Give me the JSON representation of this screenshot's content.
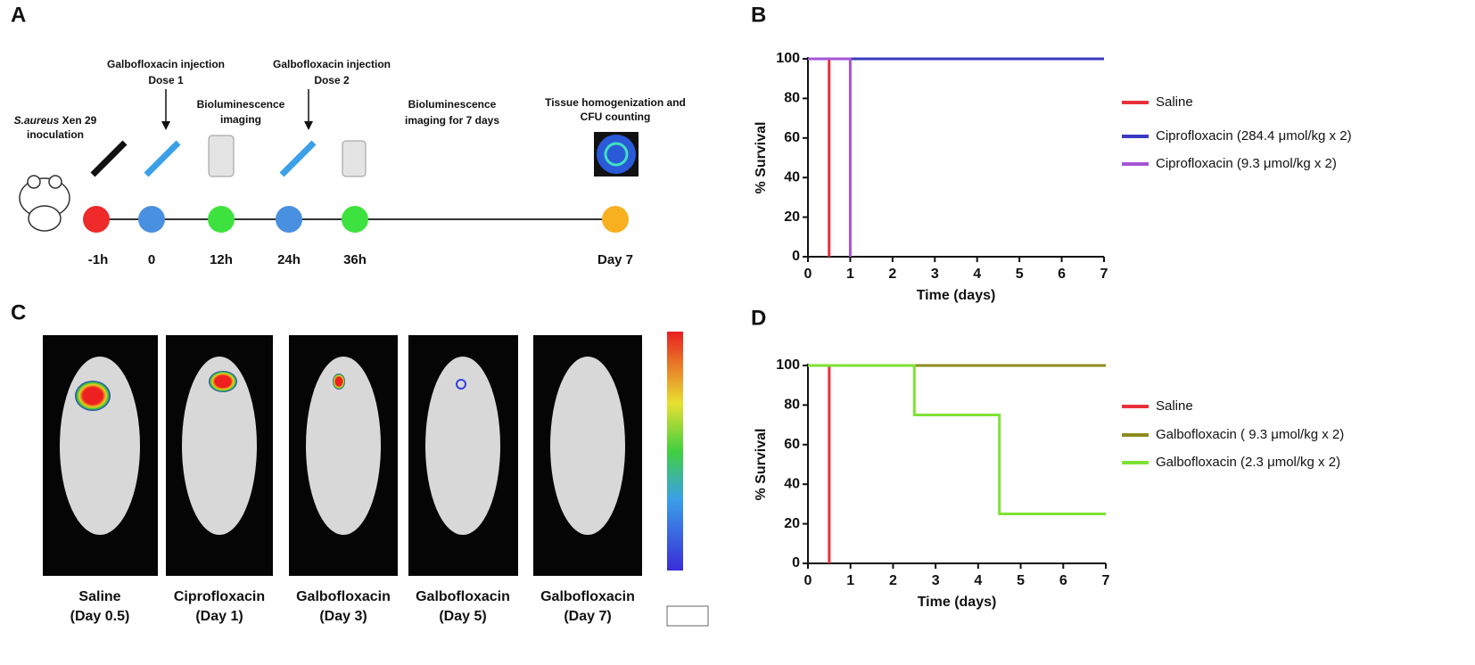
{
  "panels": {
    "a": "A",
    "b": "B",
    "c": "C",
    "d": "D"
  },
  "timeline": {
    "inoculation": {
      "organism": "S.aureus",
      "strain": " Xen 29",
      "line2": "inoculation"
    },
    "dose1": {
      "line1": "Galbofloxacin injection",
      "line2": "Dose 1"
    },
    "imaging1": {
      "line1": "Bioluminescence",
      "line2": "imaging"
    },
    "dose2": {
      "line1": "Galbofloxacin injection",
      "line2": "Dose 2"
    },
    "imaging2": {
      "line1": "Bioluminescence",
      "line2": "imaging for 7 days"
    },
    "tissue": {
      "line1": "Tissue homogenization and",
      "line2": "CFU counting"
    },
    "times": [
      "-1h",
      "0",
      "12h",
      "24h",
      "36h",
      "Day 7"
    ]
  },
  "images": [
    {
      "name": "Saline",
      "day": "(Day 0.5)"
    },
    {
      "name": "Ciprofloxacin",
      "day": "(Day 1)"
    },
    {
      "name": "Galbofloxacin",
      "day": "(Day 3)"
    },
    {
      "name": "Galbofloxacin",
      "day": "(Day 5)"
    },
    {
      "name": "Galbofloxacin",
      "day": "(Day 7)"
    }
  ],
  "chart_data": [
    {
      "type": "line",
      "xlabel": "Time (days)",
      "ylabel": "% Survival",
      "xlim": [
        0,
        7
      ],
      "xticks": [
        0,
        1,
        2,
        3,
        4,
        5,
        6,
        7
      ],
      "ylim": [
        0,
        100
      ],
      "yticks": [
        0,
        20,
        40,
        60,
        80,
        100
      ],
      "series": [
        {
          "name": "Saline",
          "color": "#e8303a",
          "x": [
            0,
            0.5,
            0.5
          ],
          "values": [
            100,
            100,
            0
          ]
        },
        {
          "name": "Ciprofloxacin (284.4 μmol/kg x 2)",
          "color": "#3a3ac2",
          "x": [
            0,
            7
          ],
          "values": [
            100,
            100
          ]
        },
        {
          "name": "Ciprofloxacin (9.3 μmol/kg x 2)",
          "color": "#a455d6",
          "x": [
            0,
            1,
            1
          ],
          "values": [
            100,
            100,
            0
          ]
        }
      ]
    },
    {
      "type": "line",
      "xlabel": "Time (days)",
      "ylabel": "% Survival",
      "xlim": [
        0,
        7
      ],
      "xticks": [
        0,
        1,
        2,
        3,
        4,
        5,
        6,
        7
      ],
      "ylim": [
        0,
        100
      ],
      "yticks": [
        0,
        20,
        40,
        60,
        80,
        100
      ],
      "series": [
        {
          "name": "Saline",
          "color": "#e8303a",
          "x": [
            0,
            0.5,
            0.5
          ],
          "values": [
            100,
            100,
            0
          ]
        },
        {
          "name": "Galbofloxacin ( 9.3 μmol/kg x 2)",
          "color": "#8c8c1e",
          "x": [
            0,
            7
          ],
          "values": [
            100,
            100
          ]
        },
        {
          "name": "Galbofloxacin (2.3 μmol/kg x 2)",
          "color": "#7ee234",
          "x": [
            0,
            2.5,
            2.5,
            4.5,
            4.5,
            7
          ],
          "values": [
            100,
            100,
            75,
            75,
            25,
            25
          ]
        }
      ]
    }
  ]
}
